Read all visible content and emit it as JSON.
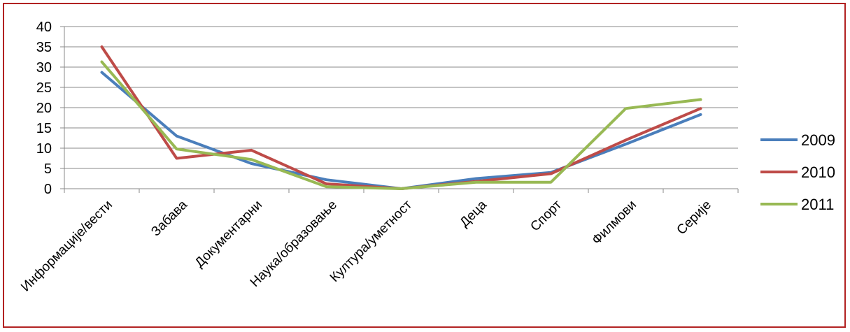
{
  "chart_data": {
    "type": "line",
    "title": "",
    "xlabel": "",
    "ylabel": "",
    "categories": [
      "Информације/вести",
      "Забава",
      "Документарни",
      "Наука/образовање",
      "Култура/уметност",
      "Деца",
      "Спорт",
      "Филмови",
      "Серије"
    ],
    "ylim": [
      0,
      40
    ],
    "yticks": [
      0,
      5,
      10,
      15,
      20,
      25,
      30,
      35,
      40
    ],
    "grid": true,
    "legend_position": "right",
    "series": [
      {
        "name": "2009",
        "color": "#4a7ebb",
        "values": [
          28.7,
          13.0,
          6.2,
          2.2,
          0.0,
          2.5,
          4.0,
          11.0,
          18.3
        ]
      },
      {
        "name": "2010",
        "color": "#be4b48",
        "values": [
          35.0,
          7.5,
          9.5,
          1.2,
          0.0,
          1.8,
          3.7,
          12.0,
          19.8
        ]
      },
      {
        "name": "2011",
        "color": "#98b954",
        "values": [
          31.3,
          9.8,
          7.2,
          0.5,
          0.0,
          1.6,
          1.6,
          19.8,
          22.0
        ]
      }
    ]
  }
}
